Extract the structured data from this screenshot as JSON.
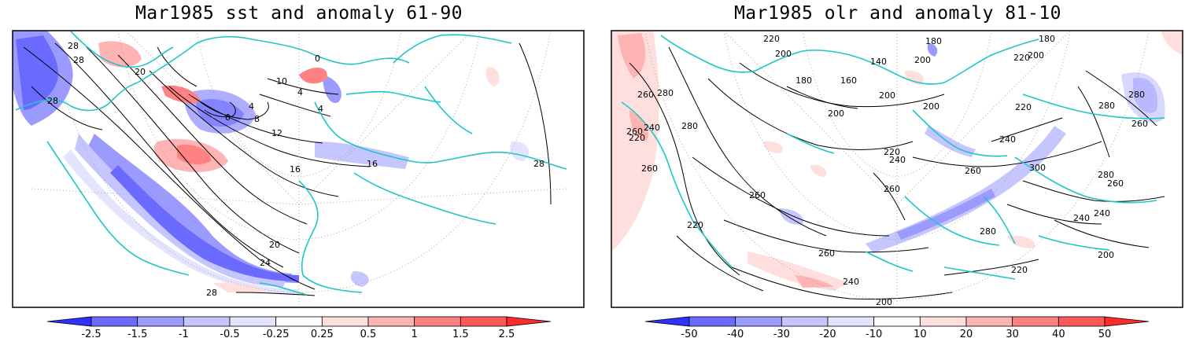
{
  "panels": [
    {
      "title": "Mar1985 sst and anomaly 61-90",
      "contour_labels": [
        "28",
        "28",
        "28",
        "20",
        "0",
        "4",
        "4",
        "8",
        "12",
        "16",
        "16",
        "10",
        "0",
        "4",
        "20",
        "24",
        "28",
        "28"
      ],
      "colorbar": {
        "labels": [
          "-2.5",
          "-1.5",
          "-1",
          "-0.5",
          "-0.25",
          "0.25",
          "0.5",
          "1",
          "1.5",
          "2.5"
        ],
        "colors": [
          "#3030ff",
          "#6a6aff",
          "#9a9aff",
          "#c6c6ff",
          "#e4e4ff",
          "#ffffff",
          "#ffdede",
          "#ffb4b4",
          "#ff8282",
          "#ff5a5a",
          "#ff2a2a"
        ]
      }
    },
    {
      "title": "Mar1985 olr and anomaly 81-10",
      "contour_labels": [
        "220",
        "200",
        "180",
        "200",
        "180",
        "220",
        "200",
        "140",
        "160",
        "180",
        "200",
        "200",
        "200",
        "220",
        "260",
        "280",
        "280",
        "260",
        "240",
        "280",
        "220",
        "260",
        "220",
        "240",
        "240",
        "260",
        "280",
        "300",
        "280",
        "260",
        "260",
        "240",
        "240",
        "280",
        "260",
        "260",
        "220",
        "200",
        "220",
        "260",
        "240",
        "200"
      ],
      "colorbar": {
        "labels": [
          "-50",
          "-40",
          "-30",
          "-20",
          "-10",
          "10",
          "20",
          "30",
          "40",
          "50"
        ],
        "colors": [
          "#3030ff",
          "#6a6aff",
          "#9a9aff",
          "#c6c6ff",
          "#e4e4ff",
          "#ffffff",
          "#ffdede",
          "#ffb4b4",
          "#ff8282",
          "#ff5a5a",
          "#ff2a2a"
        ]
      }
    }
  ],
  "map_colors": {
    "coastline": "#1fc6c6",
    "contour": "#000000",
    "grid": "#999999",
    "frame": "#000000"
  }
}
